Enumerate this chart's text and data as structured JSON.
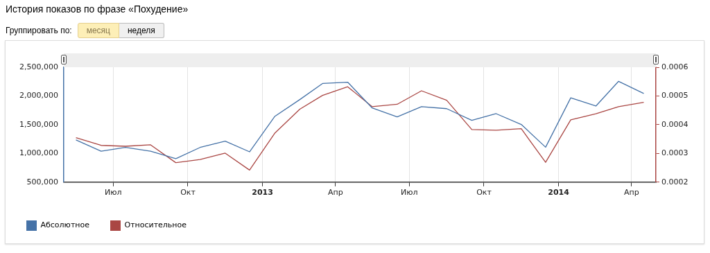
{
  "chart_data": {
    "type": "line",
    "title": "История показов по фразе «Похудение»",
    "annotations": [
      "Группировать по:",
      "месяц",
      "неделя"
    ],
    "x": [
      "2012-05-16",
      "2012-06-16",
      "2012-07-16",
      "2012-08-16",
      "2012-09-16",
      "2012-10-16",
      "2012-11-16",
      "2012-12-16",
      "2013-01-16",
      "2013-02-16",
      "2013-03-16",
      "2013-04-16",
      "2013-05-16",
      "2013-06-16",
      "2013-07-16",
      "2013-08-16",
      "2013-09-16",
      "2013-10-16",
      "2013-11-16",
      "2013-12-16",
      "2014-01-16",
      "2014-02-16",
      "2014-03-16",
      "2014-04-16"
    ],
    "series": [
      {
        "name": "Абсолютное",
        "color": "#4572a7",
        "values": [
          1236000,
          1040000,
          1104000,
          1040000,
          908000,
          1104000,
          1213000,
          1028000,
          1643000,
          1938000,
          2217000,
          2240000,
          1794000,
          1636000,
          1813000,
          1779000,
          1575000,
          1692000,
          1504000,
          1108000,
          1968000,
          1825000,
          2255000,
          2043000
        ]
      },
      {
        "name": "Относительное",
        "color": "#aa4643",
        "axis": "y2",
        "values": [
          0.000355,
          0.000328,
          0.000325,
          0.00033,
          0.000268,
          0.000279,
          0.000301,
          0.000242,
          0.00037,
          0.000454,
          0.000502,
          0.000532,
          0.000463,
          0.000471,
          0.000518,
          0.000485,
          0.000383,
          0.000381,
          0.000386,
          0.000269,
          0.000417,
          0.000438,
          0.000463,
          0.000478
        ]
      }
    ],
    "xlim": [
      "2012-05-01",
      "2014-05-01"
    ],
    "xticks": [
      {
        "value": "2012-07-01",
        "label": "Июл"
      },
      {
        "value": "2012-10-01",
        "label": "Окт"
      },
      {
        "value": "2013-01-01",
        "label": "2013"
      },
      {
        "value": "2013-04-01",
        "label": "Апр"
      },
      {
        "value": "2013-07-01",
        "label": "Июл"
      },
      {
        "value": "2013-10-01",
        "label": "Окт"
      },
      {
        "value": "2014-01-01",
        "label": "2014"
      },
      {
        "value": "2014-04-01",
        "label": "Апр"
      }
    ],
    "ylim": [
      500000,
      2500000
    ],
    "yticks": [
      {
        "value": 500000,
        "label": "500,000"
      },
      {
        "value": 1000000,
        "label": "1,000,000"
      },
      {
        "value": 1500000,
        "label": "1,500,000"
      },
      {
        "value": 2000000,
        "label": "2,000,000"
      },
      {
        "value": 2500000,
        "label": "2,500,000"
      }
    ],
    "y2lim": [
      0.0002,
      0.0006
    ],
    "y2ticks": [
      0.0002,
      0.0003,
      0.0004,
      0.0005,
      0.0006
    ],
    "grid": "x",
    "legend": "bottom left",
    "marker": "none",
    "line_style": "solid"
  }
}
